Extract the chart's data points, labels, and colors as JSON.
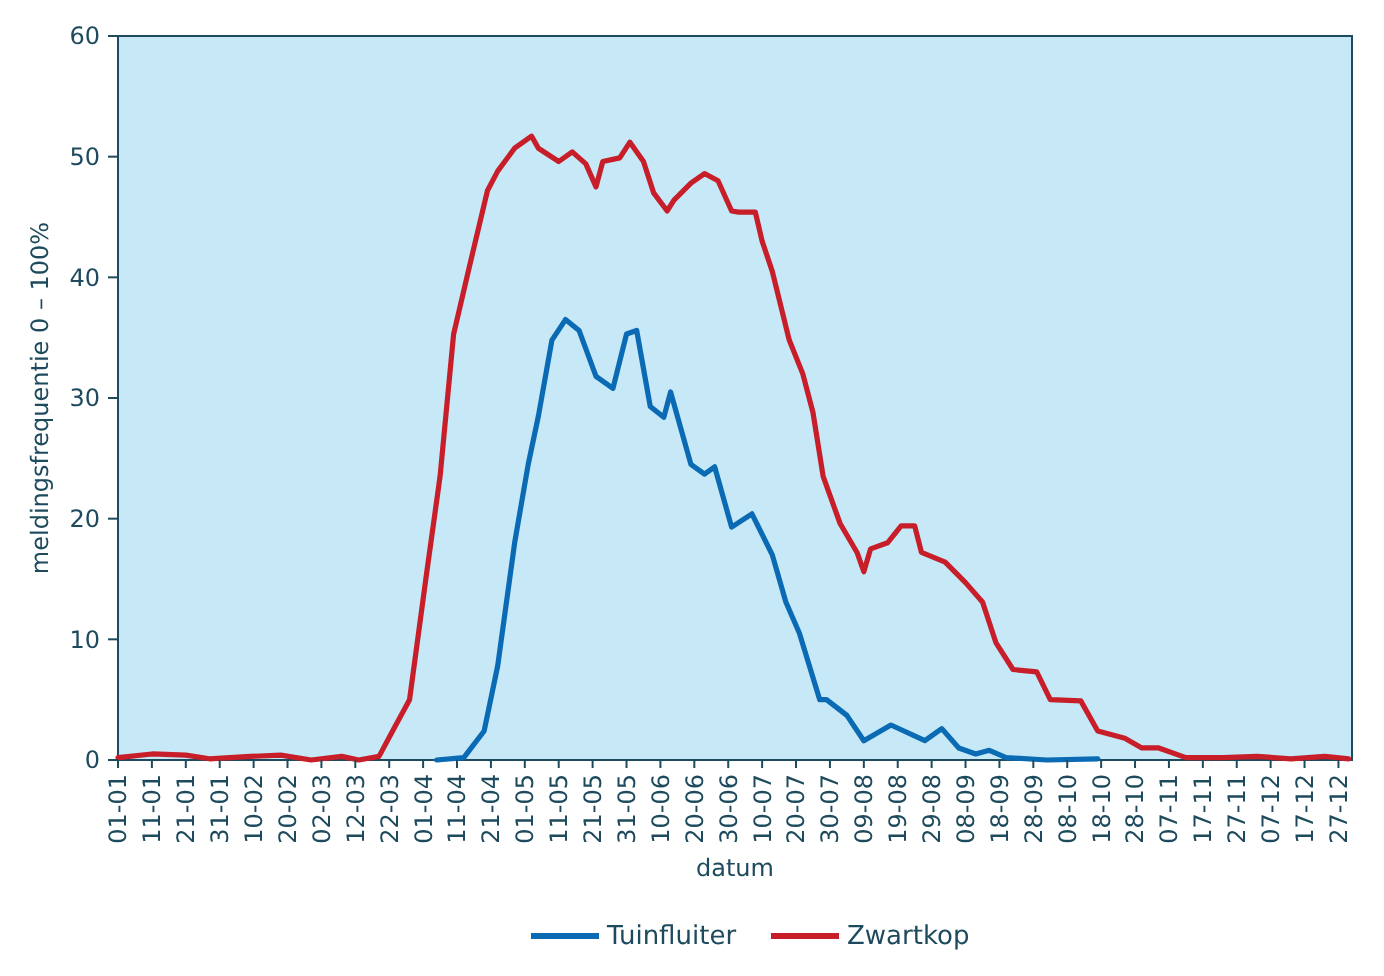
{
  "chart_data": {
    "type": "line",
    "xlabel": "datum",
    "ylabel": "meldingsfrequentie 0 – 100%",
    "legend": "bottom",
    "grid": false,
    "line_style": "solid",
    "marker": "none",
    "xlim": [
      "--01-01",
      "--12-31"
    ],
    "ylim": [
      0,
      60
    ],
    "yticks": [
      0,
      10,
      20,
      30,
      40,
      50,
      60
    ],
    "xticks": [
      {
        "value": "--01-01",
        "label": "01-01"
      },
      {
        "value": "--01-11",
        "label": "11-01"
      },
      {
        "value": "--01-21",
        "label": "21-01"
      },
      {
        "value": "--01-31",
        "label": "31-01"
      },
      {
        "value": "--02-10",
        "label": "10-02"
      },
      {
        "value": "--02-20",
        "label": "20-02"
      },
      {
        "value": "--03-02",
        "label": "02-03"
      },
      {
        "value": "--03-12",
        "label": "12-03"
      },
      {
        "value": "--03-22",
        "label": "22-03"
      },
      {
        "value": "--04-01",
        "label": "01-04"
      },
      {
        "value": "--04-11",
        "label": "11-04"
      },
      {
        "value": "--04-21",
        "label": "21-04"
      },
      {
        "value": "--05-01",
        "label": "01-05"
      },
      {
        "value": "--05-11",
        "label": "11-05"
      },
      {
        "value": "--05-21",
        "label": "21-05"
      },
      {
        "value": "--05-31",
        "label": "31-05"
      },
      {
        "value": "--06-10",
        "label": "10-06"
      },
      {
        "value": "--06-20",
        "label": "20-06"
      },
      {
        "value": "--06-30",
        "label": "30-06"
      },
      {
        "value": "--07-10",
        "label": "10-07"
      },
      {
        "value": "--07-20",
        "label": "20-07"
      },
      {
        "value": "--07-30",
        "label": "30-07"
      },
      {
        "value": "--08-09",
        "label": "09-08"
      },
      {
        "value": "--08-19",
        "label": "19-08"
      },
      {
        "value": "--08-29",
        "label": "29-08"
      },
      {
        "value": "--09-08",
        "label": "08-09"
      },
      {
        "value": "--09-18",
        "label": "18-09"
      },
      {
        "value": "--09-28",
        "label": "28-09"
      },
      {
        "value": "--10-08",
        "label": "08-10"
      },
      {
        "value": "--10-18",
        "label": "18-10"
      },
      {
        "value": "--10-28",
        "label": "28-10"
      },
      {
        "value": "--11-07",
        "label": "07-11"
      },
      {
        "value": "--11-17",
        "label": "17-11"
      },
      {
        "value": "--11-27",
        "label": "27-11"
      },
      {
        "value": "--12-07",
        "label": "07-12"
      },
      {
        "value": "--12-17",
        "label": "17-12"
      },
      {
        "value": "--12-27",
        "label": "27-12"
      }
    ],
    "series": [
      {
        "name": "Tuinfluiter",
        "color": "#0a6ab4",
        "x": [
          "--04-05",
          "--04-13",
          "--04-19",
          "--04-23",
          "--04-28",
          "--05-02",
          "--05-05",
          "--05-09",
          "--05-13",
          "--05-17",
          "--05-22",
          "--05-27",
          "--05-31",
          "--06-03",
          "--06-07",
          "--06-11",
          "--06-13",
          "--06-19",
          "--06-23",
          "--06-26",
          "--07-01",
          "--07-07",
          "--07-13",
          "--07-17",
          "--07-21",
          "--07-27",
          "--07-29",
          "--08-04",
          "--08-09",
          "--08-17",
          "--08-27",
          "--09-01",
          "--09-06",
          "--09-11",
          "--09-15",
          "--09-20",
          "--10-02",
          "--10-17"
        ],
        "values": [
          0,
          0.2,
          2.4,
          7.8,
          18,
          24.5,
          28.5,
          34.8,
          36.5,
          35.6,
          31.8,
          30.8,
          35.3,
          35.6,
          29.3,
          28.4,
          30.5,
          24.5,
          23.7,
          24.3,
          19.3,
          20.4,
          17,
          13.1,
          10.5,
          5,
          5,
          3.7,
          1.6,
          2.9,
          1.6,
          2.6,
          1,
          0.5,
          0.8,
          0.2,
          0,
          0.1
        ]
      },
      {
        "name": "Zwartkop",
        "color": "#c81e2a",
        "x": [
          "--01-01",
          "--01-11",
          "--01-21",
          "--01-28",
          "--02-09",
          "--02-18",
          "--02-27",
          "--03-08",
          "--03-13",
          "--03-19",
          "--03-23",
          "--03-28",
          "--04-02",
          "--04-06",
          "--04-10",
          "--04-15",
          "--04-20",
          "--04-23",
          "--04-28",
          "--05-03",
          "--05-05",
          "--05-11",
          "--05-15",
          "--05-19",
          "--05-22",
          "--05-24",
          "--05-29",
          "--06-01",
          "--06-05",
          "--06-08",
          "--06-12",
          "--06-14",
          "--06-19",
          "--06-23",
          "--06-27",
          "--07-01",
          "--07-03",
          "--07-08",
          "--07-10",
          "--07-13",
          "--07-18",
          "--07-22",
          "--07-25",
          "--07-28",
          "--08-02",
          "--08-07",
          "--08-09",
          "--08-11",
          "--08-16",
          "--08-20",
          "--08-24",
          "--08-26",
          "--09-02",
          "--09-08",
          "--09-13",
          "--09-17",
          "--09-22",
          "--09-29",
          "--10-03",
          "--10-12",
          "--10-17",
          "--10-25",
          "--10-30",
          "--11-04",
          "--11-12",
          "--11-23",
          "--12-03",
          "--12-13",
          "--12-23",
          "--12-30"
        ],
        "values": [
          0.2,
          0.5,
          0.4,
          0.1,
          0.3,
          0.4,
          0,
          0.3,
          0,
          0.3,
          2.4,
          5,
          15.4,
          23.5,
          35.3,
          41.3,
          47.2,
          48.8,
          50.7,
          51.7,
          50.7,
          49.6,
          50.4,
          49.4,
          47.5,
          49.6,
          49.9,
          51.2,
          49.6,
          47,
          45.5,
          46.4,
          47.8,
          48.6,
          48,
          45.5,
          45.4,
          45.4,
          43,
          40.5,
          34.8,
          32,
          28.8,
          23.5,
          19.6,
          17.2,
          15.6,
          17.5,
          18,
          19.4,
          19.4,
          17.2,
          16.4,
          14.7,
          13.1,
          9.7,
          7.5,
          7.3,
          5,
          4.9,
          2.4,
          1.8,
          1,
          1,
          0.2,
          0.2,
          0.3,
          0.1,
          0.3,
          0.1
        ]
      }
    ]
  }
}
